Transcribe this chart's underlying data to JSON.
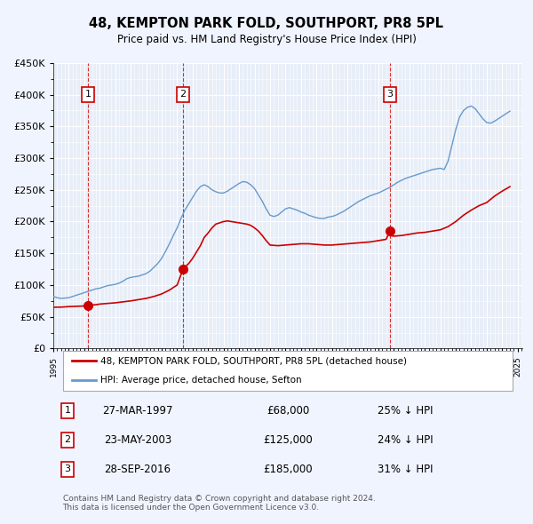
{
  "title": "48, KEMPTON PARK FOLD, SOUTHPORT, PR8 5PL",
  "subtitle": "Price paid vs. HM Land Registry's House Price Index (HPI)",
  "ylabel": "",
  "background_color": "#f0f4ff",
  "plot_bg_color": "#e8eef8",
  "grid_color": "#ffffff",
  "red_line_color": "#cc0000",
  "blue_line_color": "#6699cc",
  "sale_marker_color": "#cc0000",
  "vline_color": "#cc0000",
  "title_fontsize": 11,
  "subtitle_fontsize": 9.5,
  "ylim": [
    0,
    450000
  ],
  "ytick_step": 50000,
  "xmin": 1995.0,
  "xmax": 2025.3,
  "sales": [
    {
      "num": 1,
      "year": 1997.23,
      "price": 68000,
      "label": "27-MAR-1997",
      "pct": "25%"
    },
    {
      "num": 2,
      "year": 2003.38,
      "price": 125000,
      "label": "23-MAY-2003",
      "pct": "24%"
    },
    {
      "num": 3,
      "year": 2016.74,
      "price": 185000,
      "label": "28-SEP-2016",
      "pct": "31%"
    }
  ],
  "legend_label_red": "48, KEMPTON PARK FOLD, SOUTHPORT, PR8 5PL (detached house)",
  "legend_label_blue": "HPI: Average price, detached house, Sefton",
  "footer": "Contains HM Land Registry data © Crown copyright and database right 2024.\nThis data is licensed under the Open Government Licence v3.0.",
  "hpi_data": {
    "years": [
      1995.0,
      1995.25,
      1995.5,
      1995.75,
      1996.0,
      1996.25,
      1996.5,
      1996.75,
      1997.0,
      1997.25,
      1997.5,
      1997.75,
      1998.0,
      1998.25,
      1998.5,
      1998.75,
      1999.0,
      1999.25,
      1999.5,
      1999.75,
      2000.0,
      2000.25,
      2000.5,
      2000.75,
      2001.0,
      2001.25,
      2001.5,
      2001.75,
      2002.0,
      2002.25,
      2002.5,
      2002.75,
      2003.0,
      2003.25,
      2003.5,
      2003.75,
      2004.0,
      2004.25,
      2004.5,
      2004.75,
      2005.0,
      2005.25,
      2005.5,
      2005.75,
      2006.0,
      2006.25,
      2006.5,
      2006.75,
      2007.0,
      2007.25,
      2007.5,
      2007.75,
      2008.0,
      2008.25,
      2008.5,
      2008.75,
      2009.0,
      2009.25,
      2009.5,
      2009.75,
      2010.0,
      2010.25,
      2010.5,
      2010.75,
      2011.0,
      2011.25,
      2011.5,
      2011.75,
      2012.0,
      2012.25,
      2012.5,
      2012.75,
      2013.0,
      2013.25,
      2013.5,
      2013.75,
      2014.0,
      2014.25,
      2014.5,
      2014.75,
      2015.0,
      2015.25,
      2015.5,
      2015.75,
      2016.0,
      2016.25,
      2016.5,
      2016.75,
      2017.0,
      2017.25,
      2017.5,
      2017.75,
      2018.0,
      2018.25,
      2018.5,
      2018.75,
      2019.0,
      2019.25,
      2019.5,
      2019.75,
      2020.0,
      2020.25,
      2020.5,
      2020.75,
      2021.0,
      2021.25,
      2021.5,
      2021.75,
      2022.0,
      2022.25,
      2022.5,
      2022.75,
      2023.0,
      2023.25,
      2023.5,
      2023.75,
      2024.0,
      2024.25,
      2024.5
    ],
    "values": [
      82000,
      80000,
      79000,
      79500,
      80000,
      82000,
      84000,
      86000,
      88000,
      90000,
      92000,
      94000,
      95000,
      97000,
      99000,
      100000,
      101000,
      103000,
      106000,
      110000,
      112000,
      113000,
      114000,
      116000,
      118000,
      122000,
      128000,
      134000,
      142000,
      153000,
      165000,
      178000,
      190000,
      205000,
      218000,
      228000,
      238000,
      248000,
      255000,
      258000,
      255000,
      250000,
      247000,
      245000,
      245000,
      248000,
      252000,
      256000,
      260000,
      263000,
      262000,
      258000,
      252000,
      242000,
      232000,
      220000,
      210000,
      208000,
      210000,
      215000,
      220000,
      222000,
      220000,
      218000,
      215000,
      213000,
      210000,
      208000,
      206000,
      205000,
      205000,
      207000,
      208000,
      210000,
      213000,
      216000,
      220000,
      224000,
      228000,
      232000,
      235000,
      238000,
      241000,
      243000,
      245000,
      248000,
      251000,
      254000,
      258000,
      262000,
      265000,
      268000,
      270000,
      272000,
      274000,
      276000,
      278000,
      280000,
      282000,
      283000,
      284000,
      282000,
      295000,
      320000,
      345000,
      365000,
      375000,
      380000,
      382000,
      378000,
      370000,
      362000,
      356000,
      355000,
      358000,
      362000,
      366000,
      370000,
      374000
    ]
  },
  "price_data": {
    "years": [
      1995.0,
      1995.5,
      1996.0,
      1996.5,
      1997.0,
      1997.23,
      1997.5,
      1997.75,
      1998.0,
      1998.5,
      1999.0,
      1999.5,
      2000.0,
      2000.5,
      2001.0,
      2001.5,
      2002.0,
      2002.5,
      2003.0,
      2003.38,
      2003.5,
      2003.75,
      2004.0,
      2004.25,
      2004.5,
      2004.75,
      2005.0,
      2005.25,
      2005.5,
      2005.75,
      2006.0,
      2006.25,
      2006.5,
      2006.75,
      2007.0,
      2007.25,
      2007.5,
      2007.75,
      2008.0,
      2008.25,
      2008.5,
      2008.75,
      2009.0,
      2009.5,
      2010.0,
      2010.5,
      2011.0,
      2011.5,
      2012.0,
      2012.5,
      2013.0,
      2013.5,
      2014.0,
      2014.5,
      2015.0,
      2015.5,
      2016.0,
      2016.5,
      2016.74,
      2016.75,
      2017.0,
      2017.5,
      2018.0,
      2018.5,
      2019.0,
      2019.5,
      2020.0,
      2020.5,
      2021.0,
      2021.5,
      2022.0,
      2022.5,
      2023.0,
      2023.5,
      2024.0,
      2024.5
    ],
    "values": [
      65000,
      65200,
      66000,
      66500,
      67000,
      68000,
      68500,
      69000,
      70000,
      71000,
      72000,
      73500,
      75000,
      77000,
      79000,
      82000,
      86000,
      92000,
      100000,
      125000,
      128000,
      134000,
      142000,
      152000,
      162000,
      175000,
      182000,
      190000,
      196000,
      198000,
      200000,
      201000,
      200000,
      199000,
      198000,
      197000,
      196000,
      194000,
      190000,
      185000,
      178000,
      170000,
      163000,
      162000,
      163000,
      164000,
      165000,
      165000,
      164000,
      163000,
      163000,
      164000,
      165000,
      166000,
      167000,
      168000,
      170000,
      172000,
      185000,
      178000,
      177000,
      178000,
      180000,
      182000,
      183000,
      185000,
      187000,
      192000,
      200000,
      210000,
      218000,
      225000,
      230000,
      240000,
      248000,
      255000
    ]
  }
}
